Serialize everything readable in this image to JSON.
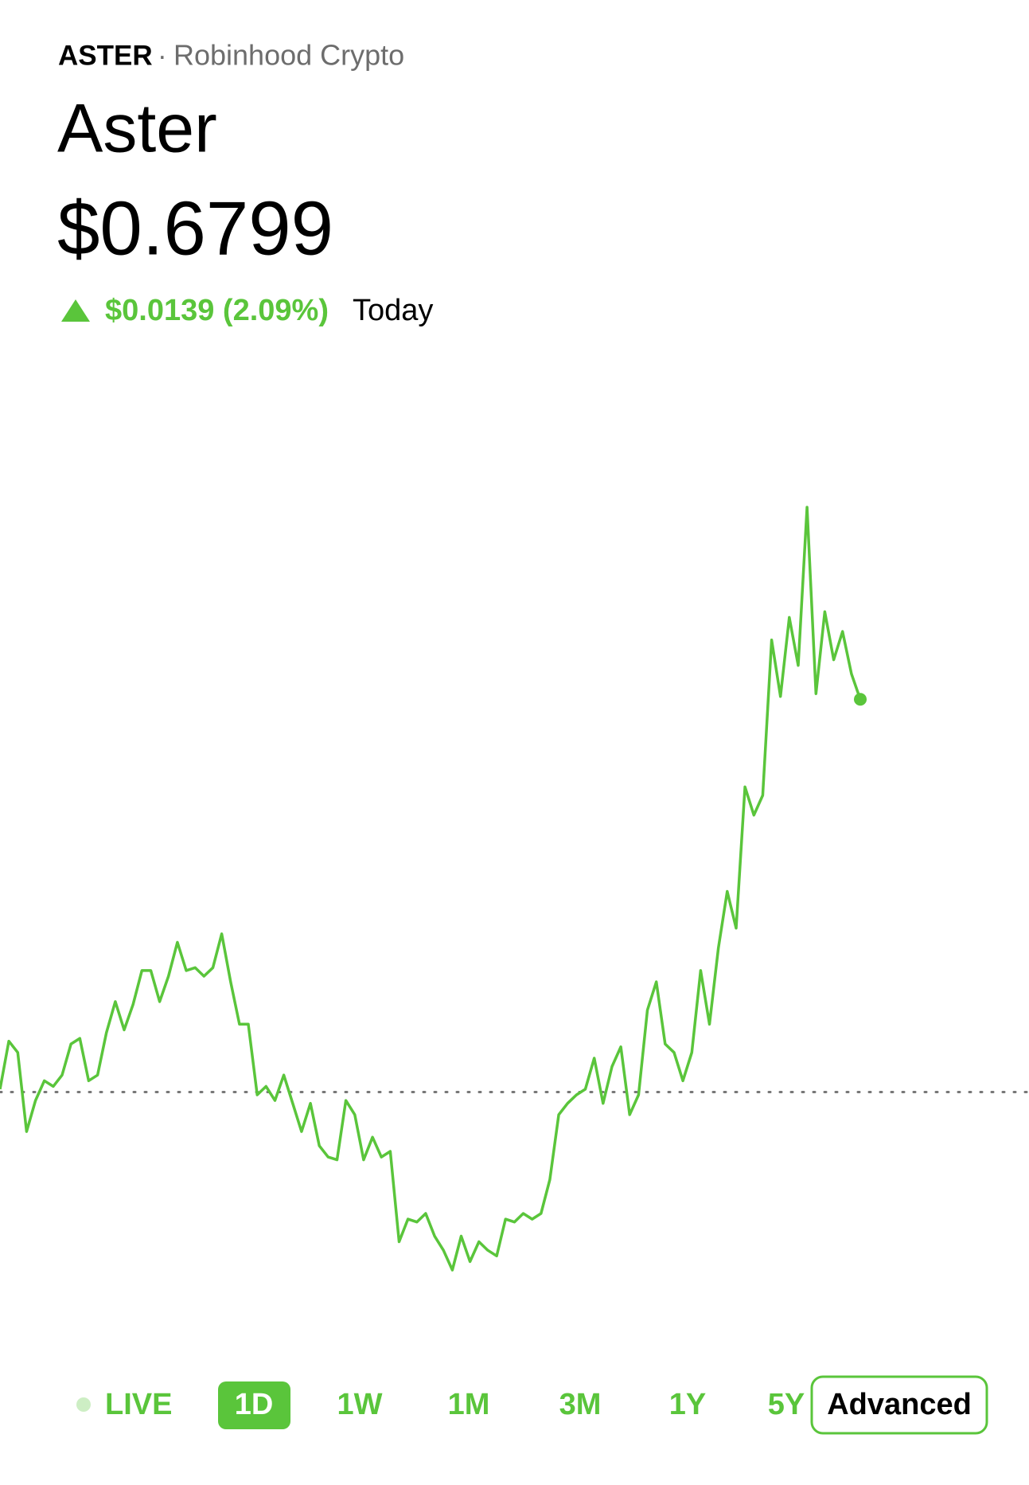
{
  "header": {
    "ticker": "ASTER",
    "separator": "·",
    "exchange": "Robinhood Crypto",
    "name": "Aster",
    "price": "$0.6799",
    "change": "$0.0139 (2.09%)",
    "period": "Today"
  },
  "chart_data": {
    "type": "line",
    "color": "#5ac53b",
    "baseline": 0.666,
    "values": [
      0.6661,
      0.6678,
      0.6674,
      0.6646,
      0.6657,
      0.6664,
      0.6662,
      0.6666,
      0.6677,
      0.6679,
      0.6664,
      0.6666,
      0.6681,
      0.6692,
      0.6682,
      0.6691,
      0.6703,
      0.6703,
      0.6692,
      0.6701,
      0.6713,
      0.6703,
      0.6704,
      0.6701,
      0.6704,
      0.6716,
      0.6699,
      0.6684,
      0.6684,
      0.6659,
      0.6662,
      0.6657,
      0.6666,
      0.6656,
      0.6646,
      0.6656,
      0.6641,
      0.6637,
      0.6636,
      0.6657,
      0.6652,
      0.6636,
      0.6644,
      0.6637,
      0.6639,
      0.6607,
      0.6615,
      0.6614,
      0.6617,
      0.6609,
      0.6604,
      0.6597,
      0.6609,
      0.66,
      0.6607,
      0.6604,
      0.6602,
      0.6615,
      0.6614,
      0.6617,
      0.6615,
      0.6617,
      0.6629,
      0.6652,
      0.6656,
      0.6659,
      0.6661,
      0.6672,
      0.6656,
      0.6669,
      0.6676,
      0.6652,
      0.6659,
      0.6689,
      0.6699,
      0.6677,
      0.6674,
      0.6664,
      0.6674,
      0.6703,
      0.6684,
      0.6711,
      0.6731,
      0.6718,
      0.6768,
      0.6758,
      0.6765,
      0.682,
      0.68,
      0.6828,
      0.6811,
      0.6867,
      0.6801,
      0.683,
      0.6813,
      0.6823,
      0.6808,
      0.6799
    ]
  },
  "tabs": {
    "live": "LIVE",
    "ranges": [
      "1D",
      "1W",
      "1M",
      "3M",
      "1Y",
      "5Y"
    ],
    "advanced": "Advanced"
  }
}
